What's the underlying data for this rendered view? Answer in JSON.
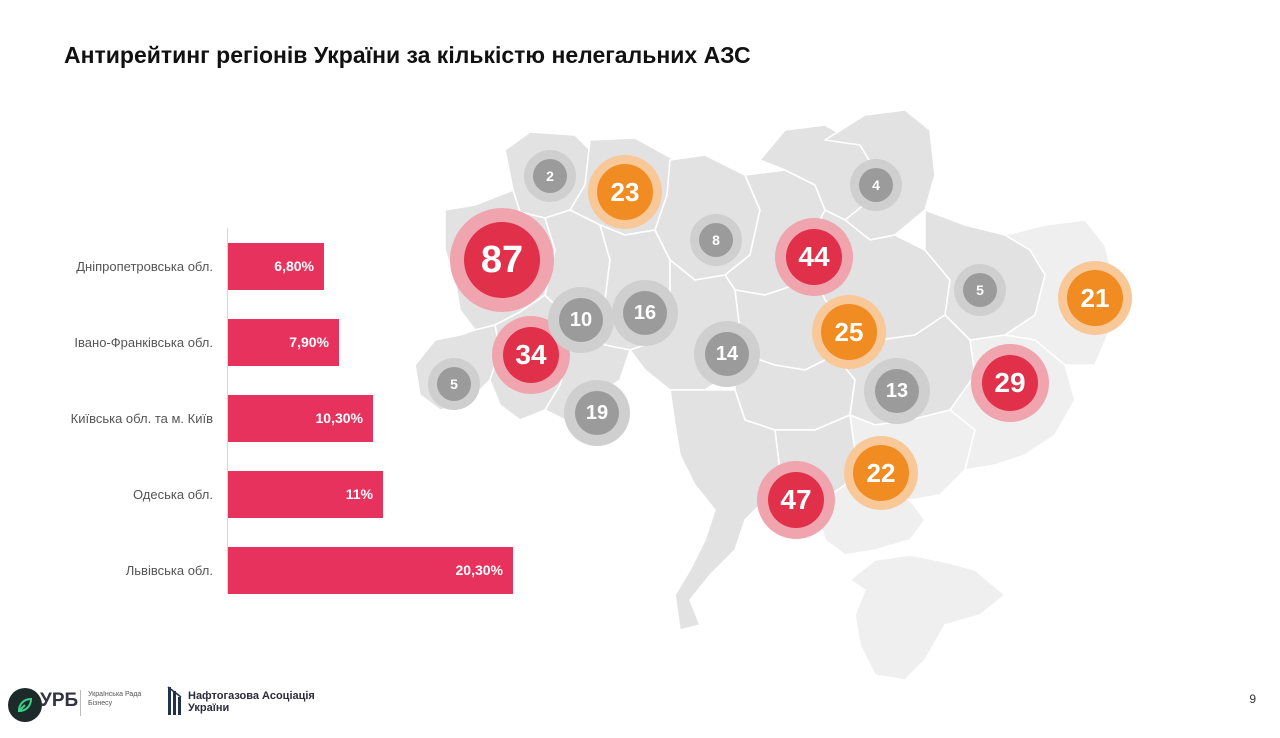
{
  "slide": {
    "title": "Антирейтинг регіонів України за кількістю нелегальних АЗС",
    "page_number": "9"
  },
  "chart_data": [
    {
      "type": "bar",
      "orientation": "horizontal",
      "categories": [
        "Дніпропетровська обл.",
        "Івано-Франківська обл.",
        "Київська обл. та м. Київ",
        "Одеська обл.",
        "Львівська обл."
      ],
      "values": [
        6.8,
        7.9,
        10.3,
        11,
        20.3
      ],
      "value_labels": [
        "6,80%",
        "7,90%",
        "10,30%",
        "11%",
        "20,30%"
      ],
      "unit": "%",
      "color": "#e8325e",
      "grid": false,
      "legend": "none"
    },
    {
      "type": "bubble-map",
      "map": "Україна",
      "values": [
        87,
        47,
        44,
        34,
        29,
        25,
        23,
        22,
        21,
        19,
        16,
        14,
        13,
        10,
        8,
        5,
        5,
        4,
        2
      ],
      "tiers": {
        "red": {
          "min": 26,
          "color": "#e0304a",
          "halo": "#f0a4ae"
        },
        "orange": {
          "min": 20,
          "max": 25,
          "color": "#f08c22",
          "halo": "#f8c898"
        },
        "grey": {
          "max": 19,
          "color": "#9b9b9b",
          "halo": "#cfcfcf"
        }
      },
      "map_fill": "#e2e2e2",
      "map_fill_light": "#efefef",
      "map_stroke": "#ffffff"
    }
  ],
  "footer": {
    "urb_logo": "УРБ",
    "urb_line1": "Українська Рада",
    "urb_line2": "Бізнесу",
    "naft_line1": "Нафтогазова Асоціація",
    "naft_line2": "України",
    "urb_icon": "leaf-pen-icon",
    "naft_icon": "flame-bars-icon"
  }
}
